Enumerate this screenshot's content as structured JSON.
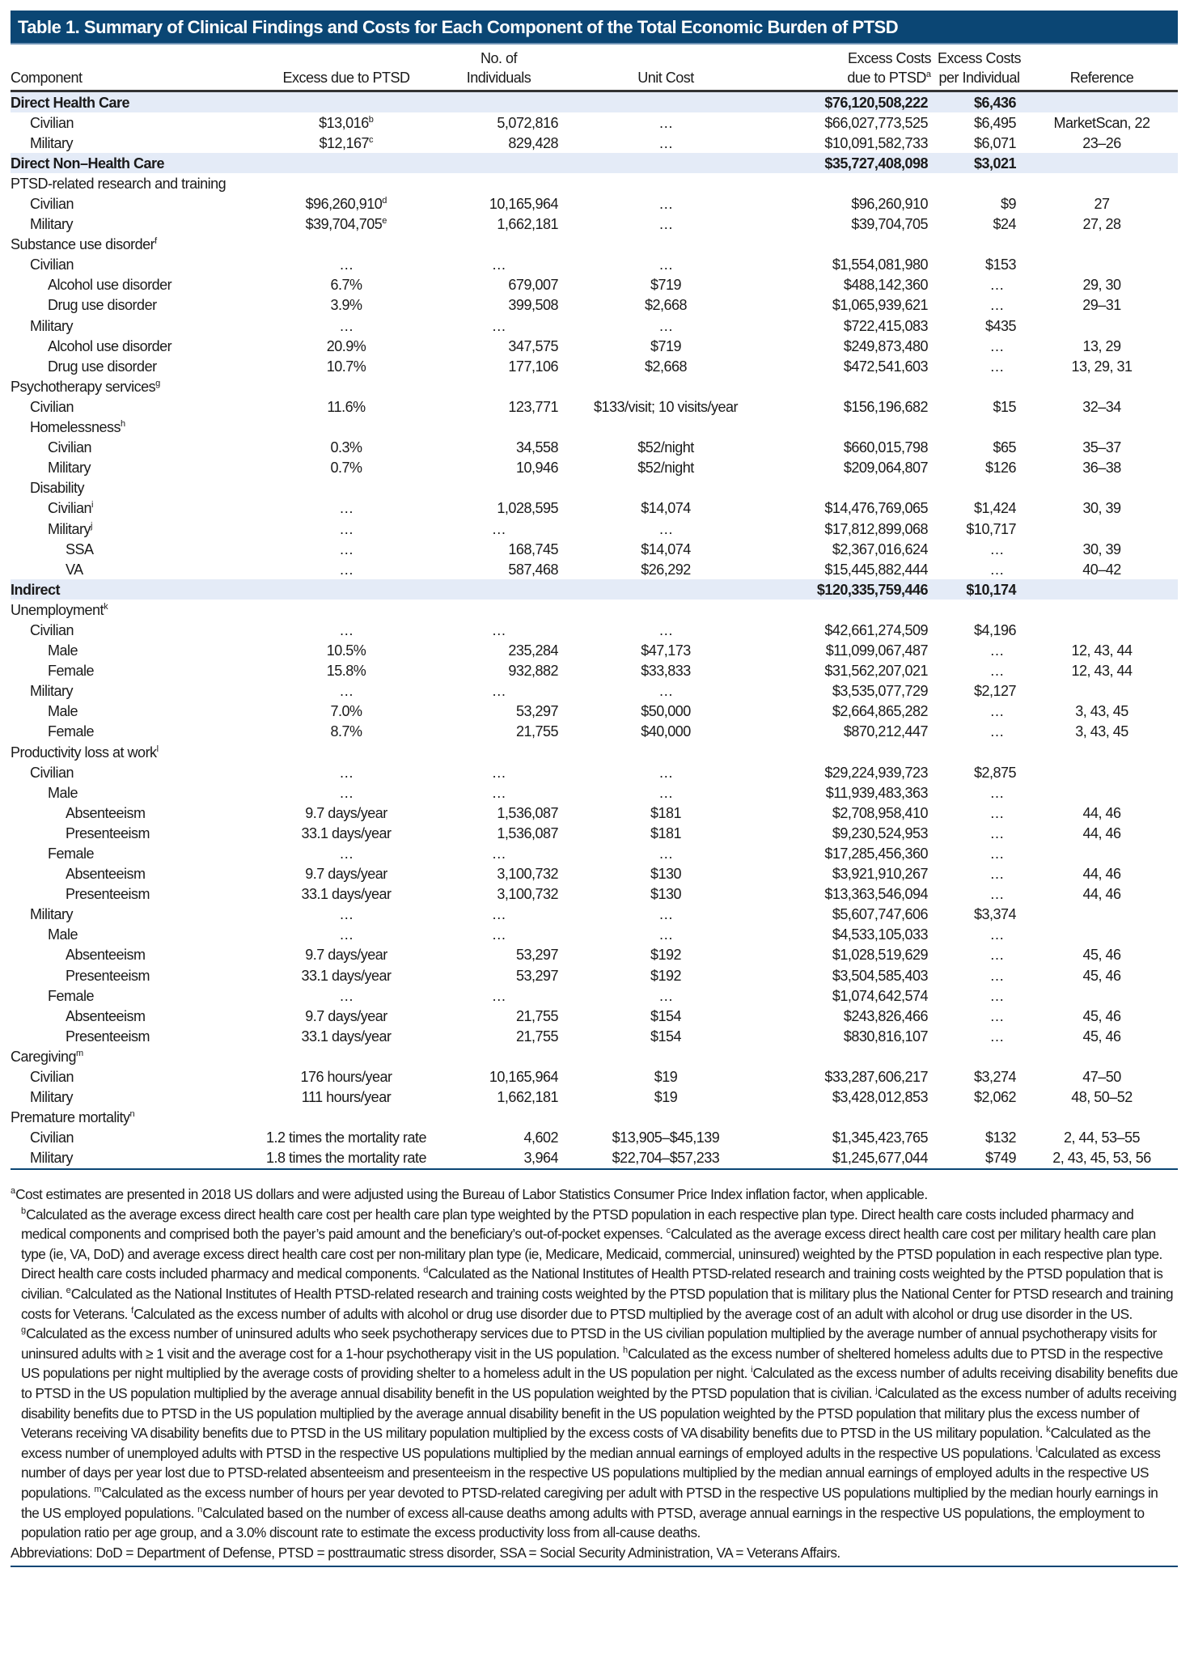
{
  "title": "Table 1. Summary of Clinical Findings and Costs for Each Component of the Total Economic Burden of PTSD",
  "colors": {
    "title_bar": "#0b4674",
    "section_band": "#e4ebf7"
  },
  "columns": {
    "component": "Component",
    "excess": "Excess due to PTSD",
    "individuals_1": "No. of",
    "individuals_2": "Individuals",
    "unit_cost": "Unit Cost",
    "excess_costs_1": "Excess Costs",
    "excess_costs_2": "due to PTSD",
    "excess_costs_sup": "a",
    "per_individual_1": "Excess Costs",
    "per_individual_2": "per Individual",
    "reference": "Reference"
  },
  "rows": [
    {
      "section": true,
      "label": "Direct Health Care",
      "cost": "$76,120,508,222",
      "per": "$6,436"
    },
    {
      "indent": 1,
      "label": "Civilian",
      "excess": "$13,016",
      "excess_sup": "b",
      "n": "5,072,816",
      "unit": "…",
      "cost": "$66,027,773,525",
      "per": "$6,495",
      "ref": "MarketScan, 22"
    },
    {
      "indent": 1,
      "label": "Military",
      "excess": "$12,167",
      "excess_sup": "c",
      "n": "829,428",
      "unit": "…",
      "cost": "$10,091,582,733",
      "per": "$6,071",
      "ref": "23–26"
    },
    {
      "section": true,
      "label": "Direct Non–Health Care",
      "cost": "$35,727,408,098",
      "per": "$3,021"
    },
    {
      "indent": 0,
      "label": "PTSD-related research and training"
    },
    {
      "indent": 1,
      "label": "Civilian",
      "excess": "$96,260,910",
      "excess_sup": "d",
      "n": "10,165,964",
      "unit": "…",
      "cost": "$96,260,910",
      "per": "$9",
      "ref": "27"
    },
    {
      "indent": 1,
      "label": "Military",
      "excess": "$39,704,705",
      "excess_sup": "e",
      "n": "1,662,181",
      "unit": "…",
      "cost": "$39,704,705",
      "per": "$24",
      "ref": "27, 28"
    },
    {
      "indent": 0,
      "label": "Substance use disorder",
      "sup": "f"
    },
    {
      "indent": 1,
      "label": "Civilian",
      "excess": "…",
      "n": "…",
      "unit": "…",
      "cost": "$1,554,081,980",
      "per": "$153"
    },
    {
      "indent": 2,
      "label": "Alcohol use disorder",
      "excess": "6.7%",
      "n": "679,007",
      "unit": "$719",
      "cost": "$488,142,360",
      "per": "…",
      "ref": "29, 30"
    },
    {
      "indent": 2,
      "label": "Drug use disorder",
      "excess": "3.9%",
      "n": "399,508",
      "unit": "$2,668",
      "cost": "$1,065,939,621",
      "per": "…",
      "ref": "29–31"
    },
    {
      "indent": 1,
      "label": "Military",
      "excess": "…",
      "n": "…",
      "unit": "…",
      "cost": "$722,415,083",
      "per": "$435"
    },
    {
      "indent": 2,
      "label": "Alcohol use disorder",
      "excess": "20.9%",
      "n": "347,575",
      "unit": "$719",
      "cost": "$249,873,480",
      "per": "…",
      "ref": "13, 29"
    },
    {
      "indent": 2,
      "label": "Drug use disorder",
      "excess": "10.7%",
      "n": "177,106",
      "unit": "$2,668",
      "cost": "$472,541,603",
      "per": "…",
      "ref": "13, 29, 31"
    },
    {
      "indent": 0,
      "label": "Psychotherapy services",
      "sup": "g"
    },
    {
      "indent": 1,
      "label": "Civilian",
      "excess": "11.6%",
      "n": "123,771",
      "unit": "$133/visit; 10 visits/year",
      "cost": "$156,196,682",
      "per": "$15",
      "ref": "32–34"
    },
    {
      "indent": 1,
      "label": "Homelessness",
      "sup": "h"
    },
    {
      "indent": 2,
      "label": "Civilian",
      "excess": "0.3%",
      "n": "34,558",
      "unit": "$52/night",
      "cost": "$660,015,798",
      "per": "$65",
      "ref": "35–37"
    },
    {
      "indent": 2,
      "label": "Military",
      "excess": "0.7%",
      "n": "10,946",
      "unit": "$52/night",
      "cost": "$209,064,807",
      "per": "$126",
      "ref": "36–38"
    },
    {
      "indent": 1,
      "label": "Disability"
    },
    {
      "indent": 2,
      "label": "Civilian",
      "sup": "i",
      "excess": "…",
      "n": "1,028,595",
      "unit": "$14,074",
      "cost": "$14,476,769,065",
      "per": "$1,424",
      "ref": "30, 39"
    },
    {
      "indent": 2,
      "label": "Military",
      "sup": "j",
      "excess": "…",
      "n": "…",
      "unit": "…",
      "cost": "$17,812,899,068",
      "per": "$10,717"
    },
    {
      "indent": 3,
      "label": "SSA",
      "excess": "…",
      "n": "168,745",
      "unit": "$14,074",
      "cost": "$2,367,016,624",
      "per": "…",
      "ref": "30, 39"
    },
    {
      "indent": 3,
      "label": "VA",
      "excess": "…",
      "n": "587,468",
      "unit": "$26,292",
      "cost": "$15,445,882,444",
      "per": "…",
      "ref": "40–42"
    },
    {
      "section": true,
      "label": "Indirect",
      "cost": "$120,335,759,446",
      "per": "$10,174"
    },
    {
      "indent": 0,
      "label": "Unemployment",
      "sup": "k"
    },
    {
      "indent": 1,
      "label": "Civilian",
      "excess": "…",
      "n": "…",
      "unit": "…",
      "cost": "$42,661,274,509",
      "per": "$4,196"
    },
    {
      "indent": 2,
      "label": "Male",
      "excess": "10.5%",
      "n": "235,284",
      "unit": "$47,173",
      "cost": "$11,099,067,487",
      "per": "…",
      "ref": "12, 43, 44"
    },
    {
      "indent": 2,
      "label": "Female",
      "excess": "15.8%",
      "n": "932,882",
      "unit": "$33,833",
      "cost": "$31,562,207,021",
      "per": "…",
      "ref": "12, 43, 44"
    },
    {
      "indent": 1,
      "label": "Military",
      "excess": "…",
      "n": "…",
      "unit": "…",
      "cost": "$3,535,077,729",
      "per": "$2,127"
    },
    {
      "indent": 2,
      "label": "Male",
      "excess": "7.0%",
      "n": "53,297",
      "unit": "$50,000",
      "cost": "$2,664,865,282",
      "per": "…",
      "ref": "3, 43, 45"
    },
    {
      "indent": 2,
      "label": "Female",
      "excess": "8.7%",
      "n": "21,755",
      "unit": "$40,000",
      "cost": "$870,212,447",
      "per": "…",
      "ref": "3, 43, 45"
    },
    {
      "indent": 0,
      "label": "Productivity loss at work",
      "sup": "l"
    },
    {
      "indent": 1,
      "label": "Civilian",
      "excess": "…",
      "n": "…",
      "unit": "…",
      "cost": "$29,224,939,723",
      "per": "$2,875"
    },
    {
      "indent": 2,
      "label": "Male",
      "excess": "…",
      "n": "…",
      "unit": "…",
      "cost": "$11,939,483,363",
      "per": "…"
    },
    {
      "indent": 3,
      "label": "Absenteeism",
      "excess": "9.7 days/year",
      "n": "1,536,087",
      "unit": "$181",
      "cost": "$2,708,958,410",
      "per": "…",
      "ref": "44, 46"
    },
    {
      "indent": 3,
      "label": "Presenteeism",
      "excess": "33.1 days/year",
      "n": "1,536,087",
      "unit": "$181",
      "cost": "$9,230,524,953",
      "per": "…",
      "ref": "44, 46"
    },
    {
      "indent": 2,
      "label": "Female",
      "excess": "…",
      "n": "…",
      "unit": "…",
      "cost": "$17,285,456,360",
      "per": "…"
    },
    {
      "indent": 3,
      "label": "Absenteeism",
      "excess": "9.7 days/year",
      "n": "3,100,732",
      "unit": "$130",
      "cost": "$3,921,910,267",
      "per": "…",
      "ref": "44, 46"
    },
    {
      "indent": 3,
      "label": "Presenteeism",
      "excess": "33.1 days/year",
      "n": "3,100,732",
      "unit": "$130",
      "cost": "$13,363,546,094",
      "per": "…",
      "ref": "44, 46"
    },
    {
      "indent": 1,
      "label": "Military",
      "excess": "…",
      "n": "…",
      "unit": "…",
      "cost": "$5,607,747,606",
      "per": "$3,374"
    },
    {
      "indent": 2,
      "label": "Male",
      "excess": "…",
      "n": "…",
      "unit": "…",
      "cost": "$4,533,105,033",
      "per": "…"
    },
    {
      "indent": 3,
      "label": "Absenteeism",
      "excess": "9.7 days/year",
      "n": "53,297",
      "unit": "$192",
      "cost": "$1,028,519,629",
      "per": "…",
      "ref": "45, 46"
    },
    {
      "indent": 3,
      "label": "Presenteeism",
      "excess": "33.1 days/year",
      "n": "53,297",
      "unit": "$192",
      "cost": "$3,504,585,403",
      "per": "…",
      "ref": "45, 46"
    },
    {
      "indent": 2,
      "label": "Female",
      "excess": "…",
      "n": "…",
      "unit": "…",
      "cost": "$1,074,642,574",
      "per": "…"
    },
    {
      "indent": 3,
      "label": "Absenteeism",
      "excess": "9.7 days/year",
      "n": "21,755",
      "unit": "$154",
      "cost": "$243,826,466",
      "per": "…",
      "ref": "45, 46"
    },
    {
      "indent": 3,
      "label": "Presenteeism",
      "excess": "33.1 days/year",
      "n": "21,755",
      "unit": "$154",
      "cost": "$830,816,107",
      "per": "…",
      "ref": "45, 46"
    },
    {
      "indent": 0,
      "label": "Caregiving",
      "sup": "m"
    },
    {
      "indent": 1,
      "label": "Civilian",
      "excess": "176 hours/year",
      "n": "10,165,964",
      "unit": "$19",
      "cost": "$33,287,606,217",
      "per": "$3,274",
      "ref": "47–50"
    },
    {
      "indent": 1,
      "label": "Military",
      "excess": "111 hours/year",
      "n": "1,662,181",
      "unit": "$19",
      "cost": "$3,428,012,853",
      "per": "$2,062",
      "ref": "48, 50–52"
    },
    {
      "indent": 0,
      "label": "Premature mortality",
      "sup": "n"
    },
    {
      "indent": 1,
      "label": "Civilian",
      "excess": "1.2 times the mortality rate",
      "n": "4,602",
      "unit": "$13,905–$45,139",
      "cost": "$1,345,423,765",
      "per": "$132",
      "ref": "2, 44, 53–55"
    },
    {
      "indent": 1,
      "label": "Military",
      "excess": "1.8 times the mortality rate",
      "n": "3,964",
      "unit": "$22,704–$57,233",
      "cost": "$1,245,677,044",
      "per": "$749",
      "ref": "2, 43, 45, 53, 56"
    }
  ],
  "footnotes": {
    "first": {
      "mark": "a",
      "text": "Cost estimates are presented in 2018 US dollars and were adjusted using the Bureau of Labor Statistics Consumer Price Index inflation factor, when applicable."
    },
    "rest": [
      {
        "mark": "b",
        "text": "Calculated as the average excess direct health care cost per health care plan type weighted by the PTSD population in each respective plan type. Direct health care costs included pharmacy and medical components and comprised both the payer’s paid amount and the beneficiary’s out-of-pocket expenses. "
      },
      {
        "mark": "c",
        "text": "Calculated as the average excess direct health care cost per military health care plan type (ie, VA, DoD) and average excess direct health care cost per non-military plan type (ie, Medicare, Medicaid, commercial, uninsured) weighted by the PTSD population in each respective plan type. Direct health care costs included pharmacy and medical components. "
      },
      {
        "mark": "d",
        "text": "Calculated as the National Institutes of Health PTSD-related research and training costs weighted by the PTSD population that is civilian. "
      },
      {
        "mark": "e",
        "text": "Calculated as the National Institutes of Health PTSD-related research and training costs weighted by the PTSD population that is military plus the National Center for PTSD research and training costs for Veterans. "
      },
      {
        "mark": "f",
        "text": "Calculated as the excess number of adults with alcohol or drug use disorder due to PTSD multiplied by the average cost of an adult with alcohol or drug use disorder in the US. "
      },
      {
        "mark": "g",
        "text": "Calculated as the excess number of uninsured adults who seek psychotherapy services due to PTSD in the US civilian population multiplied by the average number of annual psychotherapy visits for uninsured adults with ≥ 1 visit and the average cost for a 1-hour psychotherapy visit in the US population. "
      },
      {
        "mark": "h",
        "text": "Calculated as the excess number of sheltered homeless adults due to PTSD in the respective US populations per night multiplied by the average costs of providing shelter to a homeless adult in the US population per night. "
      },
      {
        "mark": "i",
        "text": "Calculated as the excess number of adults receiving disability benefits due to PTSD in the US population multiplied by the average annual disability benefit in the US population weighted by the PTSD population that is civilian. "
      },
      {
        "mark": "j",
        "text": "Calculated as the excess number of adults receiving disability benefits due to PTSD in the US population multiplied by the average annual disability benefit in the US population weighted by the PTSD population that military plus the excess number of Veterans receiving VA disability benefits due to PTSD in the US military population multiplied by the excess costs of VA disability benefits due to PTSD in the US military population. "
      },
      {
        "mark": "k",
        "text": "Calculated as the excess number of unemployed adults with PTSD in the respective US populations multiplied by the median annual earnings of employed adults in the respective US populations. "
      },
      {
        "mark": "l",
        "text": "Calculated as excess number of days per year lost due to PTSD-related absenteeism and presenteeism in the respective US populations multiplied by the median annual earnings of employed adults in the respective US populations. "
      },
      {
        "mark": "m",
        "text": "Calculated as the excess number of hours per year devoted to PTSD-related caregiving per adult with PTSD in the respective US populations multiplied by the median hourly earnings in the US employed populations. "
      },
      {
        "mark": "n",
        "text": "Calculated based on the number of excess all-cause deaths among adults with PTSD, average annual earnings in the respective US populations, the employment to population ratio per age group, and a 3.0% discount rate to estimate the excess productivity loss from all-cause deaths."
      }
    ],
    "abbreviations": "Abbreviations: DoD = Department of Defense, PTSD = posttraumatic stress disorder, SSA = Social Security Administration, VA = Veterans Affairs."
  }
}
